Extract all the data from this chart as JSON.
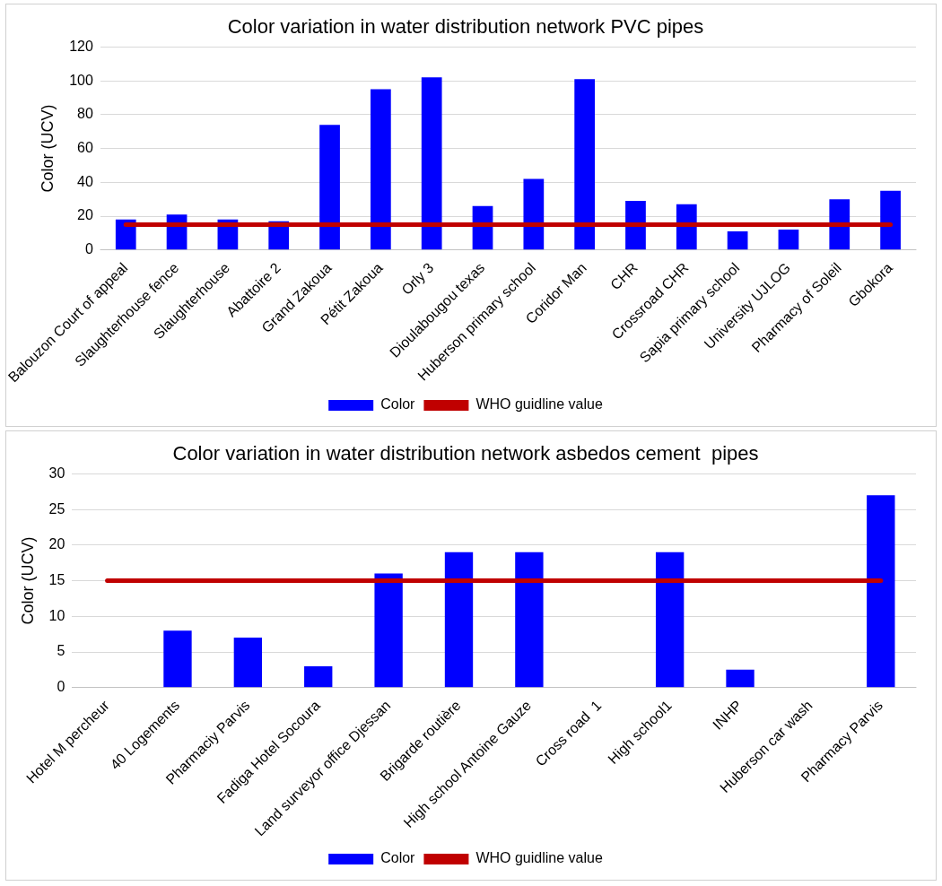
{
  "chart_data": [
    {
      "type": "bar",
      "title": "Color variation in water distribution network PVC pipes",
      "ylabel": "Color (UCV)",
      "categories": [
        "Balouzon Court of appeal",
        "Slaughterhouse fence",
        "Slaughterhouse",
        "Abattoire 2",
        "Grand Zakoua",
        "Pétit Zakoua",
        "Orly 3",
        "Dioulabougou texas",
        "Huberson primary school",
        "Coridor Man",
        "CHR",
        "Crossroad CHR",
        "Sapia primary school",
        "University UJLOG",
        "Pharmacy of Soleil",
        "Gbokora"
      ],
      "series": [
        {
          "name": "Color",
          "color": "#0000ff",
          "values": [
            18,
            21,
            18,
            17,
            74,
            95,
            102,
            26,
            42,
            101,
            29,
            27,
            11,
            12,
            30,
            35
          ]
        },
        {
          "name": "WHO guidline value",
          "type": "line",
          "color": "#c00000",
          "values": [
            15,
            15,
            15,
            15,
            15,
            15,
            15,
            15,
            15,
            15,
            15,
            15,
            15,
            15,
            15,
            15
          ]
        }
      ],
      "ylim": [
        0,
        120
      ],
      "yticks": [
        0,
        20,
        40,
        60,
        80,
        100,
        120
      ],
      "grid": "y",
      "legend": "bottom",
      "marker": "none"
    },
    {
      "type": "bar",
      "title": "Color variation in water distribution network asbedos cement  pipes",
      "ylabel": "Color (UCV)",
      "categories": [
        "Hotel M percheur",
        "40 Logements",
        "Pharmaciy Parvis",
        "Fadiga Hotel Socoura",
        "Land surveyor office Djessan",
        "Brigarde routière",
        "High school Antoine Gauze",
        "Cross road  1",
        "High school1",
        "INHP",
        "Huberson car wash",
        "Pharmacy Parvis"
      ],
      "series": [
        {
          "name": "Color",
          "color": "#0000ff",
          "values": [
            0,
            8,
            7,
            3,
            16,
            19,
            19,
            0,
            19,
            2.5,
            0,
            27
          ]
        },
        {
          "name": "WHO guidline value",
          "type": "line",
          "color": "#c00000",
          "values": [
            15,
            15,
            15,
            15,
            15,
            15,
            15,
            15,
            15,
            15,
            15,
            15
          ]
        }
      ],
      "ylim": [
        0,
        30
      ],
      "yticks": [
        0,
        5,
        10,
        15,
        20,
        25,
        30
      ],
      "grid": "y",
      "legend": "bottom",
      "marker": "none"
    }
  ]
}
